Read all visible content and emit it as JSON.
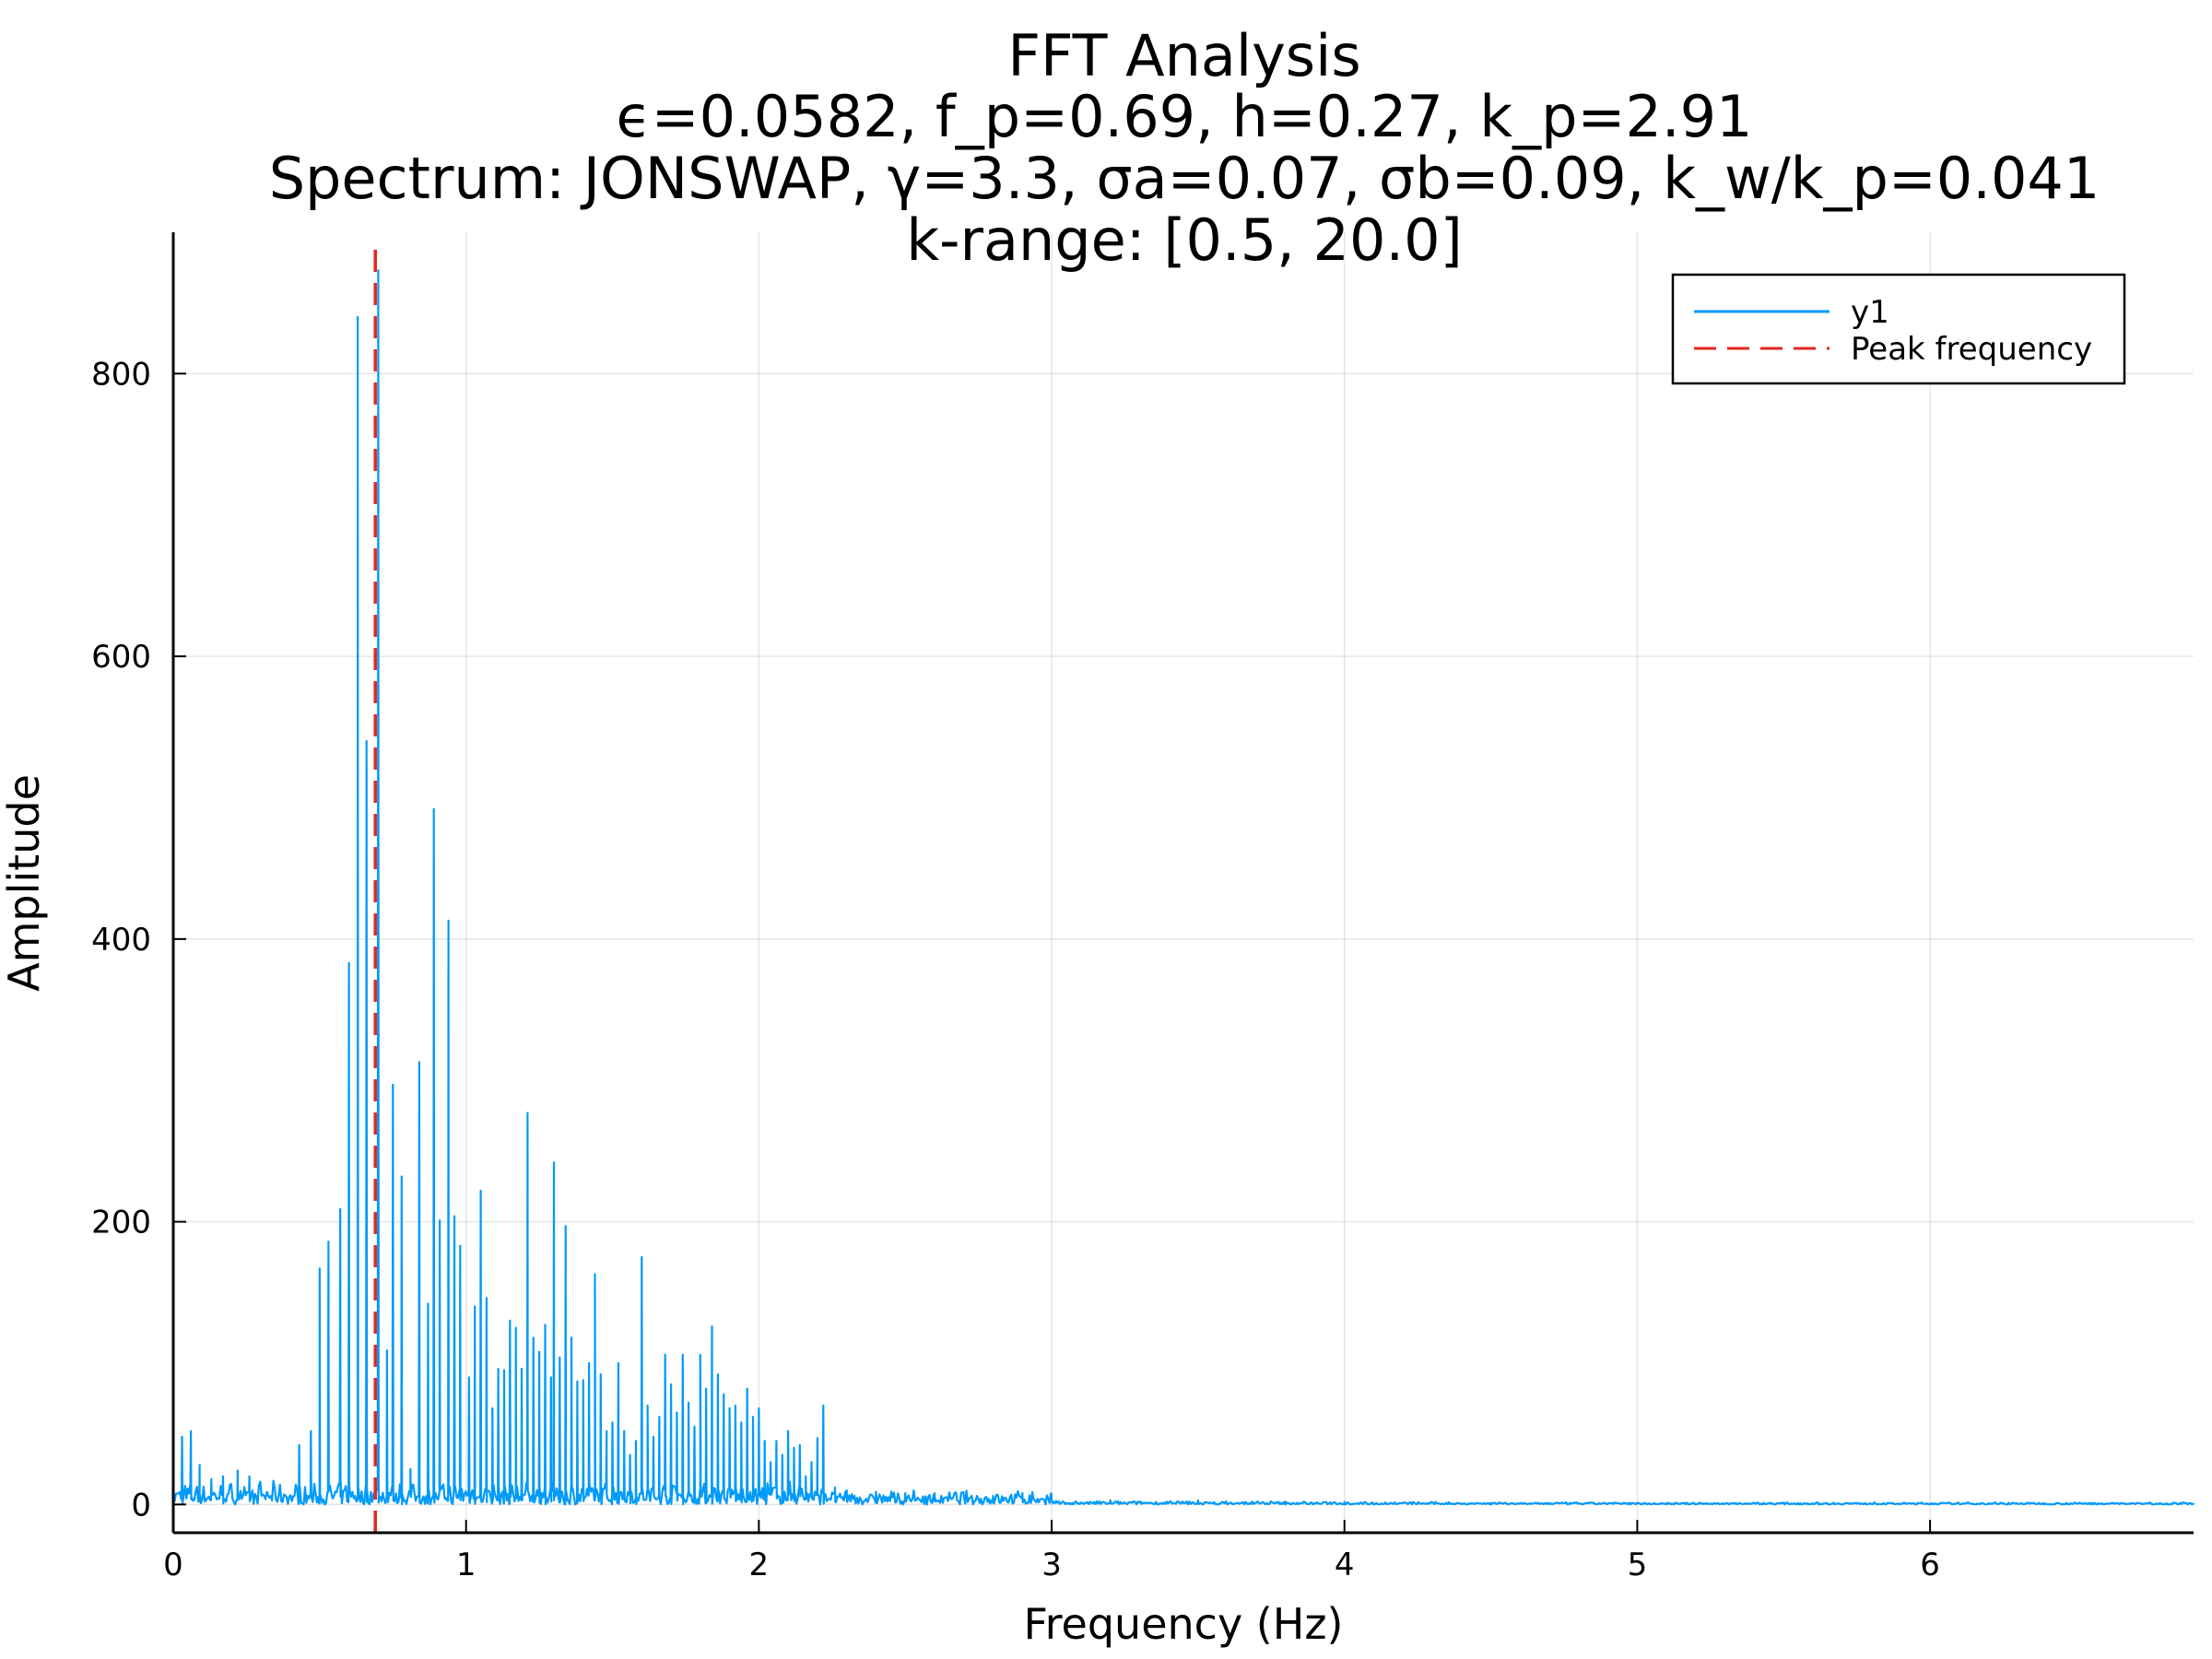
{
  "chart_data": {
    "type": "line",
    "title_lines": [
      "FFT Analysis",
      "ϵ=0.0582, f_p=0.69, h=0.27, k_p=2.91",
      "Spectrum: JONSWAP, γ=3.3, σa=0.07, σb=0.09, k_w/k_p=0.041",
      "k-range: [0.5, 20.0]"
    ],
    "xlabel": "Frequency (Hz)",
    "ylabel": "Amplitude",
    "xlim": [
      0,
      6.9
    ],
    "ylim": [
      -20,
      900
    ],
    "xticks": [
      0,
      1,
      2,
      3,
      4,
      5,
      6
    ],
    "yticks": [
      0,
      200,
      400,
      600,
      800
    ],
    "grid": true,
    "legend_position": "top-right",
    "legend": [
      "y1",
      "Peak frequency"
    ],
    "colors": {
      "series": "#009af9",
      "peak_line": "#e32620"
    },
    "peak_frequency": 0.69,
    "series_spikes": [
      [
        0.03,
        48
      ],
      [
        0.06,
        52
      ],
      [
        0.09,
        28
      ],
      [
        0.13,
        18
      ],
      [
        0.17,
        20
      ],
      [
        0.22,
        24
      ],
      [
        0.26,
        20
      ],
      [
        0.43,
        42
      ],
      [
        0.47,
        52
      ],
      [
        0.5,
        167
      ],
      [
        0.53,
        186
      ],
      [
        0.57,
        209
      ],
      [
        0.6,
        383
      ],
      [
        0.63,
        840
      ],
      [
        0.66,
        540
      ],
      [
        0.7,
        873
      ],
      [
        0.73,
        109
      ],
      [
        0.75,
        297
      ],
      [
        0.78,
        232
      ],
      [
        0.81,
        25
      ],
      [
        0.84,
        313
      ],
      [
        0.87,
        142
      ],
      [
        0.89,
        492
      ],
      [
        0.91,
        201
      ],
      [
        0.94,
        413
      ],
      [
        0.96,
        204
      ],
      [
        0.98,
        183
      ],
      [
        1.01,
        90
      ],
      [
        1.03,
        140
      ],
      [
        1.05,
        222
      ],
      [
        1.07,
        146
      ],
      [
        1.09,
        68
      ],
      [
        1.11,
        96
      ],
      [
        1.13,
        95
      ],
      [
        1.15,
        130
      ],
      [
        1.17,
        125
      ],
      [
        1.19,
        96
      ],
      [
        1.21,
        277
      ],
      [
        1.23,
        118
      ],
      [
        1.25,
        108
      ],
      [
        1.27,
        127
      ],
      [
        1.29,
        90
      ],
      [
        1.3,
        242
      ],
      [
        1.32,
        104
      ],
      [
        1.34,
        197
      ],
      [
        1.36,
        118
      ],
      [
        1.38,
        87
      ],
      [
        1.4,
        88
      ],
      [
        1.42,
        100
      ],
      [
        1.44,
        163
      ],
      [
        1.46,
        92
      ],
      [
        1.48,
        52
      ],
      [
        1.5,
        58
      ],
      [
        1.52,
        100
      ],
      [
        1.54,
        52
      ],
      [
        1.56,
        35
      ],
      [
        1.58,
        45
      ],
      [
        1.6,
        175
      ],
      [
        1.62,
        70
      ],
      [
        1.64,
        48
      ],
      [
        1.66,
        62
      ],
      [
        1.68,
        106
      ],
      [
        1.7,
        85
      ],
      [
        1.72,
        65
      ],
      [
        1.74,
        106
      ],
      [
        1.76,
        72
      ],
      [
        1.78,
        55
      ],
      [
        1.8,
        106
      ],
      [
        1.82,
        82
      ],
      [
        1.84,
        126
      ],
      [
        1.86,
        92
      ],
      [
        1.88,
        78
      ],
      [
        1.9,
        68
      ],
      [
        1.92,
        70
      ],
      [
        1.94,
        58
      ],
      [
        1.96,
        82
      ],
      [
        1.98,
        62
      ],
      [
        2.0,
        68
      ],
      [
        2.02,
        45
      ],
      [
        2.04,
        30
      ],
      [
        2.06,
        45
      ],
      [
        2.08,
        35
      ],
      [
        2.1,
        52
      ],
      [
        2.12,
        40
      ],
      [
        2.14,
        42
      ],
      [
        2.16,
        20
      ],
      [
        2.18,
        30
      ],
      [
        2.2,
        47
      ],
      [
        2.22,
        70
      ],
      [
        2.26,
        12
      ],
      [
        2.3,
        10
      ],
      [
        2.4,
        9
      ],
      [
        2.5,
        8
      ],
      [
        2.6,
        8
      ],
      [
        2.7,
        7
      ],
      [
        2.8,
        6
      ],
      [
        2.9,
        8
      ],
      [
        3.0,
        4
      ],
      [
        3.2,
        3
      ],
      [
        3.5,
        3
      ],
      [
        3.8,
        2
      ],
      [
        4.0,
        2
      ],
      [
        4.5,
        1
      ],
      [
        5.0,
        1
      ],
      [
        5.5,
        1
      ],
      [
        6.0,
        0.5
      ],
      [
        6.9,
        0.5
      ]
    ]
  }
}
